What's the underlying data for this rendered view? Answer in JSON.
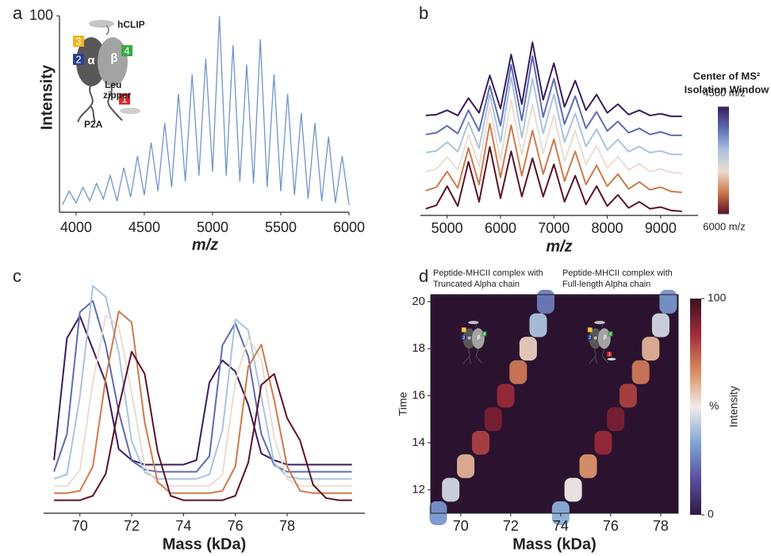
{
  "chart_data": [
    {
      "type": "line",
      "panel_label": "a",
      "xlabel": "m/z",
      "ylabel": "Intensity",
      "color": "#6f95c9",
      "x": [
        3900,
        3950,
        4000,
        4050,
        4100,
        4150,
        4200,
        4250,
        4300,
        4350,
        4400,
        4450,
        4500,
        4550,
        4600,
        4650,
        4700,
        4750,
        4800,
        4850,
        4900,
        4950,
        5000,
        5050,
        5100,
        5150,
        5200,
        5250,
        5300,
        5350,
        5400,
        5450,
        5500,
        5550,
        5600,
        5650,
        5700,
        5750,
        5800,
        5850,
        5900,
        5950,
        6000
      ],
      "values": [
        3,
        10,
        4,
        12,
        5,
        14,
        6,
        18,
        5,
        22,
        7,
        28,
        8,
        35,
        10,
        45,
        12,
        60,
        15,
        70,
        18,
        78,
        20,
        100,
        18,
        85,
        15,
        75,
        14,
        88,
        12,
        70,
        10,
        60,
        8,
        50,
        6,
        45,
        5,
        38,
        4,
        28,
        3
      ],
      "xlim": [
        3890,
        6000
      ],
      "xticks": [
        4000,
        4500,
        5000,
        5500,
        6000
      ],
      "ylim": [
        0,
        100
      ],
      "yticks": [
        100
      ],
      "schematic": {
        "peptide": "hCLIP",
        "alpha": "α",
        "beta": "β",
        "domains": [
          "3",
          "2",
          "4",
          "1"
        ],
        "domain_colors": [
          "#f2b31b",
          "#2a3f92",
          "#3aa845",
          "#d42a2a"
        ],
        "zipper": [
          "Leu",
          "zipper"
        ],
        "tag": "P2A"
      }
    },
    {
      "type": "waterfall",
      "panel_label": "b",
      "xlabel": "m/z",
      "x": [
        4600,
        4800,
        5000,
        5200,
        5400,
        5600,
        5800,
        6000,
        6200,
        6400,
        6600,
        6800,
        7000,
        7200,
        7400,
        7600,
        7800,
        8000,
        8200,
        8400,
        8600,
        8800,
        9000,
        9200,
        9400
      ],
      "series": [
        {
          "color": "#3a1c5c",
          "values": [
            2,
            3,
            8,
            2,
            22,
            5,
            48,
            10,
            72,
            15,
            86,
            20,
            62,
            12,
            42,
            8,
            26,
            5,
            15,
            3,
            8,
            2,
            4,
            1,
            1
          ]
        },
        {
          "color": "#5d6cb3",
          "values": [
            2,
            4,
            12,
            3,
            30,
            6,
            58,
            12,
            82,
            18,
            92,
            22,
            66,
            14,
            46,
            9,
            28,
            6,
            17,
            4,
            9,
            2,
            5,
            1,
            1
          ]
        },
        {
          "color": "#a9c3df",
          "values": [
            3,
            5,
            15,
            4,
            38,
            8,
            70,
            15,
            90,
            20,
            88,
            25,
            70,
            15,
            48,
            10,
            30,
            6,
            18,
            4,
            10,
            3,
            5,
            1,
            1
          ]
        },
        {
          "color": "#ecdcd2",
          "values": [
            3,
            6,
            20,
            5,
            45,
            9,
            78,
            16,
            85,
            22,
            80,
            24,
            68,
            15,
            50,
            11,
            33,
            7,
            20,
            5,
            12,
            3,
            6,
            2,
            1
          ]
        },
        {
          "color": "#cc7a4c",
          "values": [
            3,
            7,
            25,
            6,
            52,
            10,
            80,
            18,
            78,
            20,
            72,
            22,
            62,
            14,
            48,
            10,
            32,
            8,
            22,
            5,
            13,
            4,
            7,
            2,
            1
          ]
        },
        {
          "color": "#5c1227",
          "values": [
            4,
            8,
            30,
            7,
            58,
            12,
            75,
            16,
            70,
            18,
            62,
            18,
            55,
            12,
            42,
            9,
            30,
            7,
            20,
            5,
            12,
            4,
            6,
            2,
            1
          ]
        }
      ],
      "xlim": [
        4500,
        9700
      ],
      "xticks": [
        5000,
        6000,
        7000,
        8000,
        9000
      ],
      "colorbar": {
        "title": [
          "Center of MS²",
          "Isolation Window"
        ],
        "clim": [
          4500,
          6000
        ],
        "ticks": [
          {
            "value": 4500,
            "label": "4500 m/z"
          },
          {
            "value": 6000,
            "label": "6000 m/z"
          }
        ]
      }
    },
    {
      "type": "waterfall",
      "panel_label": "c",
      "xlabel": "Mass (kDa)",
      "x": [
        69.0,
        69.5,
        70.0,
        70.5,
        71.0,
        71.5,
        72.0,
        72.5,
        73.0,
        73.5,
        74.0,
        74.5,
        75.0,
        75.5,
        76.0,
        76.5,
        77.0,
        77.5,
        78.0,
        78.5,
        79.0,
        79.5,
        80.0,
        80.5
      ],
      "series": [
        {
          "color": "#3a1c5c",
          "values": [
            5,
            60,
            70,
            55,
            40,
            10,
            5,
            3,
            3,
            3,
            3,
            5,
            40,
            50,
            45,
            30,
            8,
            5,
            3,
            3,
            3,
            3,
            3,
            3
          ]
        },
        {
          "color": "#5d6cb3",
          "values": [
            3,
            20,
            75,
            80,
            60,
            30,
            8,
            4,
            3,
            3,
            3,
            3,
            10,
            60,
            70,
            55,
            20,
            6,
            3,
            3,
            3,
            3,
            3,
            3
          ]
        },
        {
          "color": "#a9c3df",
          "values": [
            3,
            5,
            40,
            90,
            85,
            60,
            20,
            6,
            3,
            3,
            3,
            3,
            5,
            25,
            75,
            70,
            40,
            10,
            4,
            3,
            3,
            3,
            3,
            3
          ]
        },
        {
          "color": "#ecdcd2",
          "values": [
            3,
            3,
            10,
            50,
            80,
            75,
            45,
            12,
            4,
            3,
            3,
            3,
            3,
            8,
            50,
            70,
            60,
            25,
            6,
            3,
            3,
            3,
            3,
            3
          ]
        },
        {
          "color": "#cc7a4c",
          "values": [
            3,
            3,
            4,
            15,
            55,
            85,
            80,
            35,
            8,
            3,
            3,
            3,
            3,
            4,
            15,
            60,
            70,
            45,
            15,
            4,
            3,
            3,
            3,
            3
          ]
        },
        {
          "color": "#5c1227",
          "values": [
            3,
            3,
            3,
            5,
            15,
            45,
            70,
            60,
            25,
            5,
            3,
            3,
            3,
            3,
            5,
            20,
            55,
            60,
            40,
            30,
            10,
            4,
            3,
            3
          ]
        }
      ],
      "xlim": [
        68.6,
        81.0
      ],
      "xticks": [
        70,
        72,
        74,
        76,
        78
      ]
    },
    {
      "type": "heatmap",
      "panel_label": "d",
      "xlabel": "Mass (kDa)",
      "ylabel": "Time",
      "titles": [
        [
          "Peptide-MHCII complex with",
          "Truncated Alpha chain"
        ],
        [
          "Peptide-MHCII complex with",
          "Full-length Alpha chain"
        ]
      ],
      "background": "#2b1330",
      "colormap": [
        "#2f1a42",
        "#5a4fa0",
        "#7fa6d6",
        "#f2ece9",
        "#d88a5e",
        "#a02c3a",
        "#3b0f24"
      ],
      "ridges": [
        {
          "x": [
            69.1,
            69.6,
            70.2,
            70.8,
            71.3,
            71.8,
            72.3,
            72.7,
            73.1,
            73.4
          ],
          "y": [
            11,
            12,
            13,
            14,
            15,
            16,
            17,
            18,
            19,
            20
          ],
          "values": [
            30,
            45,
            60,
            80,
            90,
            85,
            70,
            55,
            40,
            25
          ]
        },
        {
          "x": [
            74.0,
            74.5,
            75.1,
            75.7,
            76.2,
            76.7,
            77.2,
            77.6,
            78.0,
            78.3
          ],
          "y": [
            11,
            12,
            13,
            14,
            15,
            16,
            17,
            18,
            19,
            20
          ],
          "values": [
            35,
            50,
            65,
            85,
            90,
            80,
            70,
            60,
            45,
            30
          ]
        }
      ],
      "xlim": [
        68.8,
        78.7
      ],
      "xticks": [
        70,
        72,
        74,
        76,
        78
      ],
      "ylim": [
        11,
        20.3
      ],
      "yticks": [
        12,
        14,
        16,
        18,
        20
      ],
      "colorbar": {
        "clim": [
          0,
          100
        ],
        "ticks": [
          0,
          100
        ],
        "unit": "%",
        "label": "Intensity"
      }
    }
  ]
}
